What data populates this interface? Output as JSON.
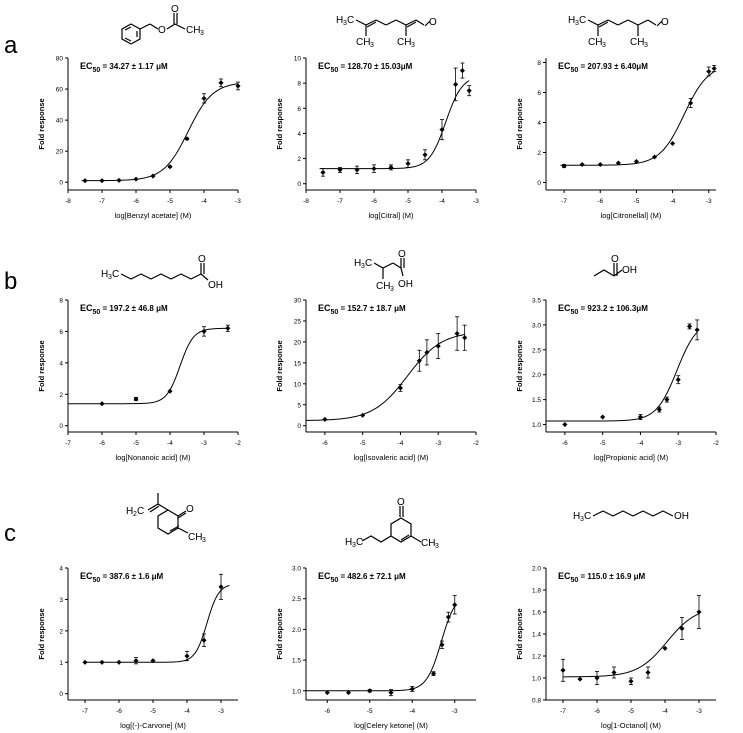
{
  "rows": [
    {
      "label": "a"
    },
    {
      "label": "b"
    },
    {
      "label": "c"
    }
  ],
  "chart_data": [
    {
      "type": "scatter",
      "row": 0,
      "col": 0,
      "compound": "Benzyl acetate",
      "ec50_label": "34.27 ± 1.17 μM",
      "xlabel": "log[Benzyl acetate] (M)",
      "ylabel": "Fold response",
      "xlim": [
        -8,
        -3
      ],
      "ylim": [
        -5,
        80
      ],
      "xticks": [
        "-8",
        "-7",
        "-6",
        "-5",
        "-4",
        "-3"
      ],
      "xtick_values": [
        -8,
        -7,
        -6,
        -5,
        -4,
        -3
      ],
      "yticks": [
        "0",
        "20",
        "40",
        "60",
        "80"
      ],
      "ytick_values": [
        0,
        20,
        40,
        60,
        80
      ],
      "points": [
        {
          "x": -7.5,
          "y": 1,
          "err": 0
        },
        {
          "x": -7,
          "y": 1,
          "err": 0
        },
        {
          "x": -6.5,
          "y": 1.2,
          "err": 0
        },
        {
          "x": -6,
          "y": 2,
          "err": 0
        },
        {
          "x": -5.5,
          "y": 4,
          "err": 0
        },
        {
          "x": -5,
          "y": 10,
          "err": 0.5
        },
        {
          "x": -4.5,
          "y": 28,
          "err": 0.5
        },
        {
          "x": -4,
          "y": 54,
          "err": 3
        },
        {
          "x": -3.5,
          "y": 64,
          "err": 2.5
        },
        {
          "x": -3,
          "y": 62,
          "err": 2.5
        }
      ],
      "fit": {
        "bottom": 1,
        "top": 64.5,
        "log_ec50": -4.465,
        "hill": 1.2,
        "x_from": -7.6,
        "x_to": -3
      }
    },
    {
      "type": "scatter",
      "row": 0,
      "col": 1,
      "compound": "Citral",
      "ec50_label": "128.70 ± 15.03μM",
      "xlabel": "log[Citral] (M)",
      "ylabel": "Fold response",
      "xlim": [
        -8,
        -3
      ],
      "ylim": [
        -0.5,
        10
      ],
      "xticks": [
        "-8",
        "-7",
        "-6",
        "-5",
        "-4",
        "-3"
      ],
      "xtick_values": [
        -8,
        -7,
        -6,
        -5,
        -4,
        -3
      ],
      "yticks": [
        "0",
        "2",
        "4",
        "6",
        "8",
        "10"
      ],
      "ytick_values": [
        0,
        2,
        4,
        6,
        8,
        10
      ],
      "points": [
        {
          "x": -7.5,
          "y": 0.9,
          "err": 0.3
        },
        {
          "x": -7,
          "y": 1.1,
          "err": 0.2
        },
        {
          "x": -6.5,
          "y": 1.1,
          "err": 0.3
        },
        {
          "x": -6,
          "y": 1.2,
          "err": 0.3
        },
        {
          "x": -5.5,
          "y": 1.3,
          "err": 0.2
        },
        {
          "x": -5,
          "y": 1.6,
          "err": 0.3
        },
        {
          "x": -4.5,
          "y": 2.3,
          "err": 0.4
        },
        {
          "x": -4,
          "y": 4.3,
          "err": 0.8
        },
        {
          "x": -3.6,
          "y": 7.9,
          "err": 1.3
        },
        {
          "x": -3.4,
          "y": 9,
          "err": 0.6
        },
        {
          "x": -3.2,
          "y": 7.4,
          "err": 0.4
        }
      ],
      "fit": {
        "bottom": 1.2,
        "top": 8.6,
        "log_ec50": -3.89,
        "hill": 1.8,
        "x_from": -7.6,
        "x_to": -3.2
      }
    },
    {
      "type": "scatter",
      "row": 0,
      "col": 2,
      "compound": "Citronellal",
      "ec50_label": "207.93 ± 6.40μM",
      "xlabel": "log[Citronellal] (M)",
      "ylabel": "Fold response",
      "xlim": [
        -7.5,
        -2.8
      ],
      "ylim": [
        -0.5,
        8.3
      ],
      "xticks": [
        "-7",
        "-6",
        "-5",
        "-4",
        "-3"
      ],
      "xtick_values": [
        -7,
        -6,
        -5,
        -4,
        -3
      ],
      "yticks": [
        "0",
        "2",
        "4",
        "6",
        "8"
      ],
      "ytick_values": [
        0,
        2,
        4,
        6,
        8
      ],
      "points": [
        {
          "x": -7,
          "y": 1.1,
          "err": 0.1
        },
        {
          "x": -6.5,
          "y": 1.2,
          "err": 0
        },
        {
          "x": -6,
          "y": 1.2,
          "err": 0
        },
        {
          "x": -5.5,
          "y": 1.3,
          "err": 0
        },
        {
          "x": -5,
          "y": 1.4,
          "err": 0
        },
        {
          "x": -4.5,
          "y": 1.7,
          "err": 0
        },
        {
          "x": -4,
          "y": 2.6,
          "err": 0
        },
        {
          "x": -3.5,
          "y": 5.3,
          "err": 0.3
        },
        {
          "x": -3,
          "y": 7.4,
          "err": 0.3
        },
        {
          "x": -2.85,
          "y": 7.6,
          "err": 0.2
        }
      ],
      "fit": {
        "bottom": 1.15,
        "top": 7.9,
        "log_ec50": -3.682,
        "hill": 1.3,
        "x_from": -7.1,
        "x_to": -2.85
      }
    },
    {
      "type": "scatter",
      "row": 1,
      "col": 0,
      "compound": "Nonanoic acid",
      "ec50_label": "197.2 ± 46.8 μM",
      "xlabel": "log[Nonanoic acid] (M)",
      "ylabel": "Fold response",
      "xlim": [
        -7,
        -2
      ],
      "ylim": [
        -0.4,
        8
      ],
      "xticks": [
        "-7",
        "-6",
        "-5",
        "-4",
        "-3",
        "-2"
      ],
      "xtick_values": [
        -7,
        -6,
        -5,
        -4,
        -3,
        -2
      ],
      "yticks": [
        "0",
        "2",
        "4",
        "6",
        "8"
      ],
      "ytick_values": [
        0,
        2,
        4,
        6,
        8
      ],
      "points": [
        {
          "x": -6,
          "y": 1.4,
          "err": 0
        },
        {
          "x": -5,
          "y": 1.7,
          "err": 0.1
        },
        {
          "x": -4,
          "y": 2.2,
          "err": 0
        },
        {
          "x": -3,
          "y": 6,
          "err": 0.3
        },
        {
          "x": -2.3,
          "y": 6.2,
          "err": 0.2
        }
      ],
      "fit": {
        "bottom": 1.4,
        "top": 6.2,
        "log_ec50": -3.705,
        "hill": 2.2,
        "x_from": -7,
        "x_to": -2.3
      }
    },
    {
      "type": "scatter",
      "row": 1,
      "col": 1,
      "compound": "Isovaleric acid",
      "ec50_label": "152.7 ± 18.7 μM",
      "xlabel": "log[Isovaleric acid] (M)",
      "ylabel": "Fold response",
      "xlim": [
        -6.5,
        -2
      ],
      "ylim": [
        -1.5,
        30
      ],
      "xticks": [
        "-6",
        "-5",
        "-4",
        "-3",
        "-2"
      ],
      "xtick_values": [
        -6,
        -5,
        -4,
        -3,
        -2
      ],
      "yticks": [
        "0",
        "5",
        "10",
        "15",
        "20",
        "25",
        "30"
      ],
      "ytick_values": [
        0,
        5,
        10,
        15,
        20,
        25,
        30
      ],
      "points": [
        {
          "x": -6,
          "y": 1.5,
          "err": 0
        },
        {
          "x": -5,
          "y": 2.5,
          "err": 0
        },
        {
          "x": -4,
          "y": 9,
          "err": 0.8
        },
        {
          "x": -3.5,
          "y": 15.5,
          "err": 2.5
        },
        {
          "x": -3.3,
          "y": 17.5,
          "err": 3
        },
        {
          "x": -3,
          "y": 19,
          "err": 3
        },
        {
          "x": -2.5,
          "y": 22,
          "err": 4
        },
        {
          "x": -2.3,
          "y": 21,
          "err": 3
        }
      ],
      "fit": {
        "bottom": 1.2,
        "top": 22.5,
        "log_ec50": -3.816,
        "hill": 0.95,
        "x_from": -6.5,
        "x_to": -2.3
      }
    },
    {
      "type": "scatter",
      "row": 1,
      "col": 2,
      "compound": "Propionic acid",
      "ec50_label": "923.2 ± 106.3μM",
      "xlabel": "log[Propionic acid] (M)",
      "ylabel": "Fold response",
      "xlim": [
        -6.5,
        -2
      ],
      "ylim": [
        0.85,
        3.5
      ],
      "xticks": [
        "-6",
        "-5",
        "-4",
        "-3",
        "-2"
      ],
      "xtick_values": [
        -6,
        -5,
        -4,
        -3,
        -2
      ],
      "yticks": [
        "1.0",
        "1.5",
        "2.0",
        "2.5",
        "3.0",
        "3.5"
      ],
      "ytick_values": [
        1,
        1.5,
        2,
        2.5,
        3,
        3.5
      ],
      "points": [
        {
          "x": -6,
          "y": 1.0,
          "err": 0
        },
        {
          "x": -5,
          "y": 1.15,
          "err": 0
        },
        {
          "x": -4,
          "y": 1.15,
          "err": 0.05
        },
        {
          "x": -3.5,
          "y": 1.3,
          "err": 0.05
        },
        {
          "x": -3.3,
          "y": 1.5,
          "err": 0.05
        },
        {
          "x": -3,
          "y": 1.9,
          "err": 0.08
        },
        {
          "x": -2.7,
          "y": 2.97,
          "err": 0.05
        },
        {
          "x": -2.5,
          "y": 2.9,
          "err": 0.2
        }
      ],
      "fit": {
        "bottom": 1.07,
        "top": 3.1,
        "log_ec50": -3.035,
        "hill": 1.6,
        "x_from": -6.5,
        "x_to": -2.5
      }
    },
    {
      "type": "scatter",
      "row": 2,
      "col": 0,
      "compound": "(-)-Carvone",
      "ec50_label": "387.6 ± 1.6 μM",
      "xlabel": "log[(-)-Carvone] (M)",
      "ylabel": "Fold response",
      "xlim": [
        -7.5,
        -2.5
      ],
      "ylim": [
        -0.2,
        4
      ],
      "xticks": [
        "-7",
        "-6",
        "-5",
        "-4",
        "-3"
      ],
      "xtick_values": [
        -7,
        -6,
        -5,
        -4,
        -3
      ],
      "yticks": [
        "0",
        "1",
        "2",
        "3",
        "4"
      ],
      "ytick_values": [
        0,
        1,
        2,
        3,
        4
      ],
      "points": [
        {
          "x": -7,
          "y": 1.0,
          "err": 0
        },
        {
          "x": -6.5,
          "y": 1.0,
          "err": 0
        },
        {
          "x": -6,
          "y": 1.0,
          "err": 0
        },
        {
          "x": -5.5,
          "y": 1.05,
          "err": 0.1
        },
        {
          "x": -5,
          "y": 1.05,
          "err": 0
        },
        {
          "x": -4,
          "y": 1.2,
          "err": 0.15
        },
        {
          "x": -3.5,
          "y": 1.7,
          "err": 0.2
        },
        {
          "x": -3,
          "y": 3.4,
          "err": 0.4
        }
      ],
      "fit": {
        "bottom": 1.0,
        "top": 3.5,
        "log_ec50": -3.412,
        "hill": 2.5,
        "x_from": -7,
        "x_to": -2.75
      }
    },
    {
      "type": "scatter",
      "row": 2,
      "col": 1,
      "compound": "Celery ketone",
      "ec50_label": "482.6 ± 72.1 μM",
      "xlabel": "log[Celery ketone] (M)",
      "ylabel": "Fold response",
      "xlim": [
        -6.5,
        -2.5
      ],
      "ylim": [
        0.85,
        3.0
      ],
      "xticks": [
        "-6",
        "-5",
        "-4",
        "-3"
      ],
      "xtick_values": [
        -6,
        -5,
        -4,
        -3
      ],
      "yticks": [
        "1.0",
        "1.5",
        "2.0",
        "2.5",
        "3.0"
      ],
      "ytick_values": [
        1,
        1.5,
        2,
        2.5,
        3
      ],
      "points": [
        {
          "x": -6,
          "y": 0.97,
          "err": 0
        },
        {
          "x": -5.5,
          "y": 0.97,
          "err": 0
        },
        {
          "x": -5,
          "y": 1.0,
          "err": 0.02
        },
        {
          "x": -4.5,
          "y": 0.97,
          "err": 0.05
        },
        {
          "x": -4,
          "y": 1.03,
          "err": 0.04
        },
        {
          "x": -3.5,
          "y": 1.28,
          "err": 0.03
        },
        {
          "x": -3.3,
          "y": 1.75,
          "err": 0.06
        },
        {
          "x": -3.15,
          "y": 2.2,
          "err": 0.08
        },
        {
          "x": -3,
          "y": 2.4,
          "err": 0.15
        }
      ],
      "fit": {
        "bottom": 1.0,
        "top": 2.6,
        "log_ec50": -3.316,
        "hill": 2.5,
        "x_from": -6.5,
        "x_to": -3
      }
    },
    {
      "type": "scatter",
      "row": 2,
      "col": 2,
      "compound": "1-Octanol",
      "ec50_label": "115.0 ± 16.9 μM",
      "xlabel": "log[1-Octanol] (M)",
      "ylabel": "Fold response",
      "xlim": [
        -7.5,
        -2.5
      ],
      "ylim": [
        0.8,
        2.0
      ],
      "xticks": [
        "-7",
        "-6",
        "-5",
        "-4",
        "-3"
      ],
      "xtick_values": [
        -7,
        -6,
        -5,
        -4,
        -3
      ],
      "yticks": [
        "0.8",
        "1.0",
        "1.2",
        "1.4",
        "1.6",
        "1.8",
        "2.0"
      ],
      "ytick_values": [
        0.8,
        1,
        1.2,
        1.4,
        1.6,
        1.8,
        2
      ],
      "points": [
        {
          "x": -7,
          "y": 1.07,
          "err": 0.1
        },
        {
          "x": -6.5,
          "y": 0.99,
          "err": 0
        },
        {
          "x": -6,
          "y": 1.0,
          "err": 0.06
        },
        {
          "x": -5.5,
          "y": 1.05,
          "err": 0.05
        },
        {
          "x": -5,
          "y": 0.97,
          "err": 0.03
        },
        {
          "x": -4.5,
          "y": 1.05,
          "err": 0.05
        },
        {
          "x": -4,
          "y": 1.27,
          "err": 0
        },
        {
          "x": -3.5,
          "y": 1.45,
          "err": 0.1
        },
        {
          "x": -3,
          "y": 1.6,
          "err": 0.15
        }
      ],
      "fit": {
        "bottom": 1.01,
        "top": 1.65,
        "log_ec50": -3.939,
        "hill": 1.0,
        "x_from": -7,
        "x_to": -3
      }
    }
  ]
}
